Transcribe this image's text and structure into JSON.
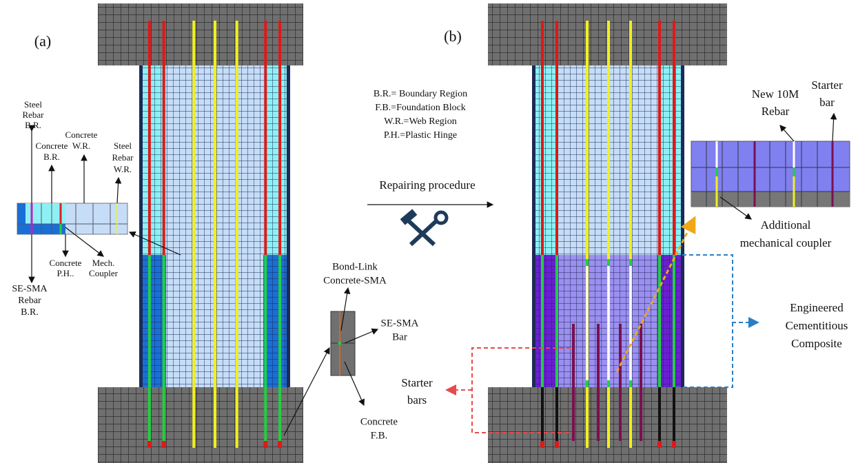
{
  "panels": [
    "(a)",
    "(b)"
  ],
  "legend": [
    "B.R.= Boundary Region",
    "F.B.=Foundation Block",
    "W.R.=Web Region",
    "P.H.=Plastic Hinge"
  ],
  "arrow_label": "Repairing procedure",
  "annotations": [
    {
      "lines": [
        "Steel",
        "Rebar",
        "B.R."
      ]
    },
    {
      "lines": [
        "Concrete",
        "B.R."
      ]
    },
    {
      "lines": [
        "Concrete",
        "W.R."
      ]
    },
    {
      "lines": [
        "Steel",
        "Rebar",
        "W.R."
      ]
    },
    {
      "lines": [
        "SE-SMA",
        "Rebar",
        "B.R."
      ]
    },
    {
      "lines": [
        "Concrete",
        "P.H.."
      ]
    },
    {
      "lines": [
        "Mech.",
        "Coupler"
      ]
    },
    {
      "lines": [
        "Bond-Link",
        "Concrete-SMA"
      ]
    },
    {
      "lines": [
        "SE-SMA",
        "Bar"
      ]
    },
    {
      "lines": [
        "Concrete",
        "F.B."
      ]
    },
    {
      "lines": [
        "New 10M",
        "Rebar"
      ]
    },
    {
      "lines": [
        "Starter",
        "bar"
      ]
    },
    {
      "lines": [
        "Additional",
        "mechanical coupler"
      ]
    },
    {
      "lines": [
        "Engineered",
        "Cementitious",
        "Composite"
      ]
    },
    {
      "lines": [
        "Starter",
        "bars"
      ]
    }
  ]
}
